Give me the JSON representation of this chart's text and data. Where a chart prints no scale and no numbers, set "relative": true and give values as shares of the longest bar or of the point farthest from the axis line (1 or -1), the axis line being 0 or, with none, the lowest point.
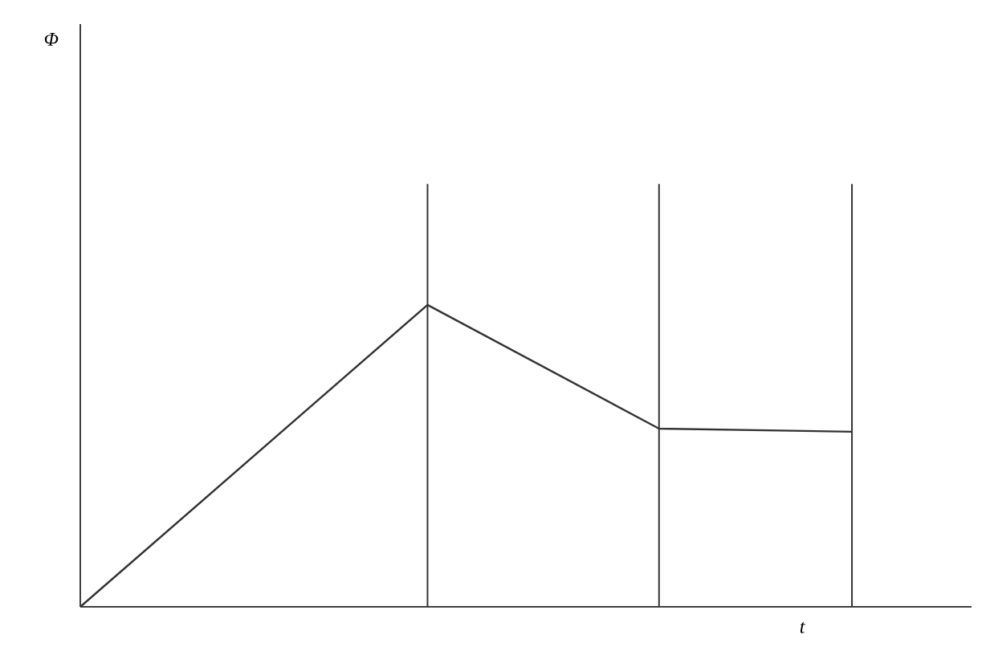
{
  "chart_data": {
    "type": "line",
    "relative": true,
    "xlabel": "t",
    "annotations": [
      "Φ"
    ],
    "categories": [
      null,
      null,
      null,
      null,
      null,
      null,
      null,
      null,
      null,
      null,
      null,
      null,
      null,
      null,
      null,
      null,
      null,
      null,
      null,
      null,
      null,
      null
    ],
    "series": [
      {
        "color": "#333333",
        "values": [
          0,
          null,
          null,
          null,
          null,
          null,
          null,
          null,
          null,
          1,
          null,
          null,
          null,
          null,
          null,
          0.59,
          null,
          null,
          null,
          null,
          0.58,
          null
        ]
      }
    ],
    "grid": "x",
    "tick_labels": false
  }
}
